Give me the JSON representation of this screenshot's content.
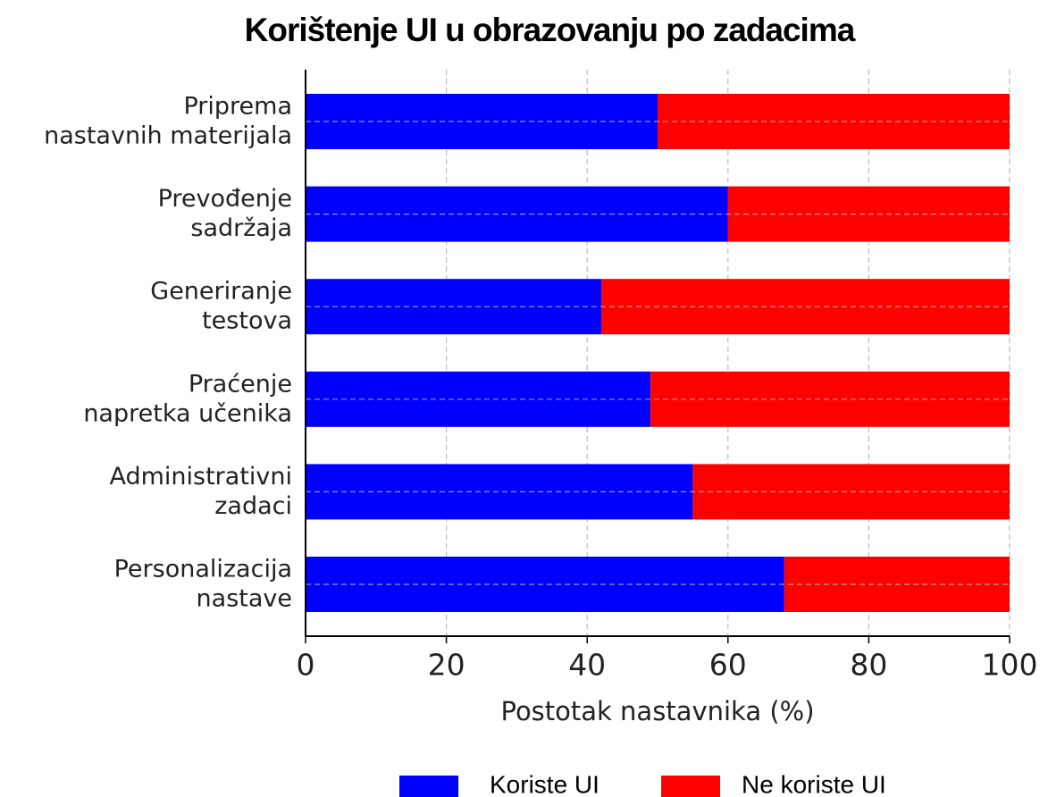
{
  "chart_data": {
    "type": "stacked_barh",
    "title": "Korištenje UI u obrazovanju po zadacima",
    "xlabel": "Postotak nastavnika (%)",
    "categories": [
      "Priprema\nnastavnih materijala",
      "Prevođenje\nsadržaja",
      "Generiranje\ntestova",
      "Praćenje\nnapretka učenika",
      "Administrativni\nzadaci",
      "Personalizacija\nnastave"
    ],
    "series": [
      {
        "name": "Koriste UI",
        "color": "#0000ff",
        "values": [
          50,
          60,
          42,
          49,
          55,
          68
        ]
      },
      {
        "name": "Ne koriste UI",
        "color": "#ff0000",
        "values": [
          50,
          40,
          58,
          51,
          45,
          32
        ]
      }
    ],
    "xlim": [
      0,
      100
    ],
    "xticks": [
      0,
      20,
      40,
      60,
      80,
      100
    ],
    "grid": true
  }
}
